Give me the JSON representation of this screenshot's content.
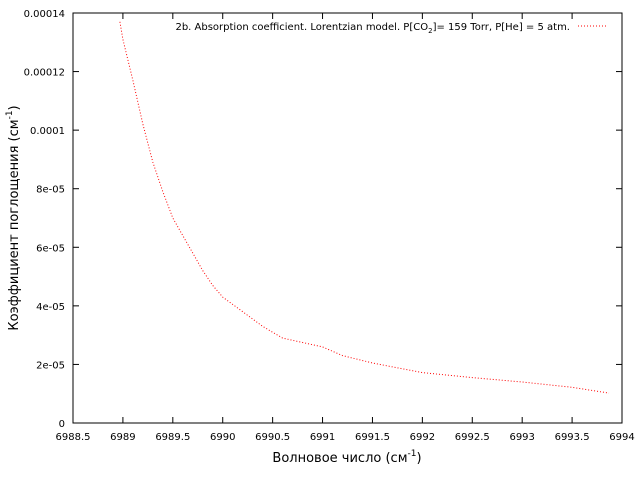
{
  "chart_data": {
    "type": "line",
    "title": "",
    "xlabel": {
      "main": "Волновое число (см",
      "sup": "-1",
      "tail": ")"
    },
    "ylabel": {
      "main": "Коэффициент поглощения (см",
      "sup": "-1",
      "tail": ")"
    },
    "xlim": [
      6988.5,
      6994
    ],
    "ylim": [
      0,
      0.00014
    ],
    "xticks": [
      {
        "value": 6988.5,
        "label": "6988.5"
      },
      {
        "value": 6989,
        "label": "6989"
      },
      {
        "value": 6989.5,
        "label": "6989.5"
      },
      {
        "value": 6990,
        "label": "6990"
      },
      {
        "value": 6990.5,
        "label": "6990.5"
      },
      {
        "value": 6991,
        "label": "6991"
      },
      {
        "value": 6991.5,
        "label": "6991.5"
      },
      {
        "value": 6992,
        "label": "6992"
      },
      {
        "value": 6992.5,
        "label": "6992.5"
      },
      {
        "value": 6993,
        "label": "6993"
      },
      {
        "value": 6993.5,
        "label": "6993.5"
      },
      {
        "value": 6994,
        "label": "6994"
      }
    ],
    "yticks": [
      {
        "value": 0,
        "label": "0"
      },
      {
        "value": 2e-05,
        "label": "2e-05"
      },
      {
        "value": 4e-05,
        "label": "4e-05"
      },
      {
        "value": 6e-05,
        "label": "6e-05"
      },
      {
        "value": 8e-05,
        "label": "8e-05"
      },
      {
        "value": 0.0001,
        "label": "0.0001"
      },
      {
        "value": 0.00012,
        "label": "0.00012"
      },
      {
        "value": 0.00014,
        "label": "0.00014"
      }
    ],
    "grid": false,
    "legend_position": "top-right",
    "series": [
      {
        "name": "2b. Absorption coefficient. Lorentzian model. P[CO2]= 159 Torr, P[He] = 5 atm.",
        "legend_parts": {
          "pre": "2b. Absorption coefficient. Lorentzian model. P[CO",
          "sub": "2",
          "post": "]= 159 Torr, P[He] = 5 atm."
        },
        "color": "#ff0000",
        "style": "dotted",
        "x": [
          6988.97,
          6989.0,
          6989.1,
          6989.2,
          6989.3,
          6989.4,
          6989.5,
          6989.6,
          6989.7,
          6989.8,
          6989.9,
          6990.0,
          6990.2,
          6990.4,
          6990.6,
          6990.8,
          6991.0,
          6991.2,
          6991.5,
          6991.8,
          6992.0,
          6992.5,
          6993.0,
          6993.5,
          6993.87
        ],
        "y": [
          0.000137,
          0.000131,
          0.000117,
          0.000102,
          8.9e-05,
          7.9e-05,
          7e-05,
          6.4e-05,
          5.8e-05,
          5.2e-05,
          4.7e-05,
          4.3e-05,
          3.8e-05,
          3.3e-05,
          2.9e-05,
          2.75e-05,
          2.6e-05,
          2.3e-05,
          2.05e-05,
          1.85e-05,
          1.72e-05,
          1.55e-05,
          1.4e-05,
          1.22e-05,
          1.02e-05
        ]
      }
    ]
  }
}
